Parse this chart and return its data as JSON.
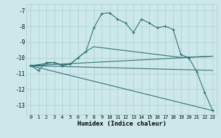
{
  "xlabel": "Humidex (Indice chaleur)",
  "background_color": "#cde8ea",
  "grid_color": "#aacdd0",
  "line_color": "#2a7070",
  "xlim": [
    -0.5,
    23.5
  ],
  "ylim": [
    -13.6,
    -6.6
  ],
  "xticks": [
    0,
    1,
    2,
    3,
    4,
    5,
    6,
    7,
    8,
    9,
    10,
    11,
    12,
    13,
    14,
    15,
    16,
    17,
    18,
    19,
    20,
    21,
    22,
    23
  ],
  "yticks": [
    -7,
    -8,
    -9,
    -10,
    -11,
    -12,
    -13
  ],
  "series1_x": [
    0,
    1,
    2,
    3,
    4,
    5,
    6,
    7,
    8,
    9,
    10,
    11,
    12,
    13,
    14,
    15,
    16,
    17,
    18,
    19,
    20,
    21,
    22,
    23
  ],
  "series1_y": [
    -10.5,
    -10.8,
    -10.3,
    -10.3,
    -10.5,
    -10.4,
    -10.0,
    -9.6,
    -8.1,
    -7.2,
    -7.15,
    -7.55,
    -7.8,
    -8.4,
    -7.55,
    -7.8,
    -8.1,
    -8.0,
    -8.2,
    -9.8,
    -10.0,
    -10.9,
    -12.2,
    -13.35
  ],
  "series2_x": [
    0,
    3,
    4,
    5,
    6,
    7,
    8,
    19,
    20,
    21,
    22,
    23
  ],
  "series2_y": [
    -10.5,
    -10.3,
    -10.45,
    -10.42,
    -10.0,
    -9.6,
    -9.3,
    -9.98,
    -9.96,
    -9.94,
    -9.92,
    -9.9
  ],
  "series3_x": [
    0,
    23
  ],
  "series3_y": [
    -10.5,
    -9.9
  ],
  "series4_x": [
    0,
    23
  ],
  "series4_y": [
    -10.5,
    -10.8
  ],
  "series5_x": [
    0,
    23
  ],
  "series5_y": [
    -10.5,
    -13.35
  ]
}
